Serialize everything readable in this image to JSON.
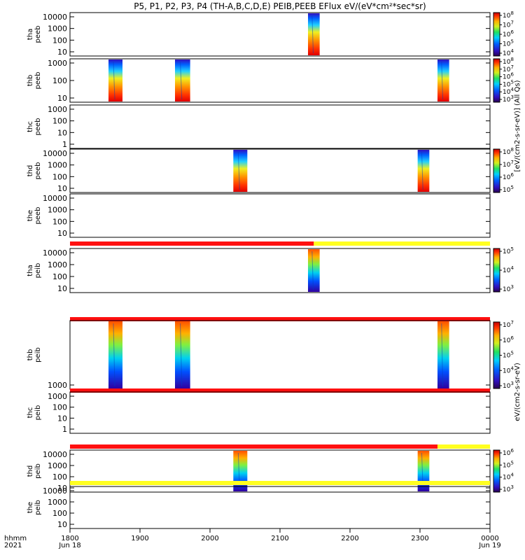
{
  "title": "P5, P1, P2, P3, P4 (TH-A,B,C,D,E) PEIB,PEEB EFlux eV/(eV*cm²*sec*sr)",
  "footer": {
    "row1_label": "hhmm",
    "row2_label": "2021",
    "x_ticks": [
      "1800",
      "1900",
      "2000",
      "2100",
      "2200",
      "2300",
      "0000"
    ],
    "x_dates": [
      "Jun 18",
      "Jun 19"
    ]
  },
  "colors": {
    "mode_red": "#ff1010",
    "mode_yellow": "#ffff20",
    "frame": "#000000"
  },
  "colorbar_label_esa": "[eV/(cm2-s-sr-eV)] (All Qs)",
  "colorbar_label_esa_flux": "eV/(cm2-s-sr-eV)",
  "chart_data": [
    {
      "type": "heatmap",
      "probe": "tha",
      "instrument": "peeb",
      "ylabel": "tha\npeeb",
      "y_scale": "log",
      "y_ticks": [
        "10",
        "100",
        "1000",
        "10000"
      ],
      "colorbar_ticks": [
        "10^4",
        "10^5",
        "10^6",
        "10^7",
        "10^8"
      ],
      "bursts_hhmm": [
        [
          "2124",
          "2134"
        ]
      ]
    },
    {
      "type": "heatmap",
      "probe": "thb",
      "instrument": "peeb",
      "ylabel": "thb\npeeb",
      "y_scale": "log",
      "y_ticks": [
        "10",
        "100",
        "1000"
      ],
      "colorbar_ticks": [
        "10^3",
        "10^4",
        "10^5",
        "10^6",
        "10^7",
        "10^8"
      ],
      "bursts_hhmm": [
        [
          "1833",
          "1845"
        ],
        [
          "1930",
          "1943"
        ],
        [
          "2315",
          "2325"
        ]
      ]
    },
    {
      "type": "heatmap",
      "probe": "thc",
      "instrument": "peeb",
      "ylabel": "thc\npeeb",
      "y_scale": "log",
      "y_ticks": [
        "1",
        "10",
        "100",
        "1000"
      ],
      "bursts_hhmm": []
    },
    {
      "type": "heatmap",
      "probe": "thd",
      "instrument": "peeb",
      "ylabel": "thd\npeeb",
      "y_scale": "log",
      "y_ticks": [
        "10",
        "100",
        "1000",
        "10000"
      ],
      "colorbar_ticks": [
        "10^5",
        "10^6",
        "10^7",
        "10^8"
      ],
      "bursts_hhmm": [
        [
          "2020",
          "2032"
        ],
        [
          "2258",
          "2308"
        ]
      ]
    },
    {
      "type": "heatmap",
      "probe": "the",
      "instrument": "peeb",
      "ylabel": "the\npeeb",
      "y_scale": "log",
      "y_ticks": [
        "10",
        "100",
        "1000",
        "10000"
      ],
      "bursts_hhmm": []
    },
    {
      "type": "heatmap",
      "probe": "tha",
      "instrument": "peib",
      "ylabel": "tha\npeib",
      "y_scale": "log",
      "y_ticks": [
        "10",
        "100",
        "1000",
        "10000"
      ],
      "colorbar_ticks": [
        "10^3",
        "10^4",
        "10^5"
      ],
      "bursts_hhmm": [
        [
          "2124",
          "2134"
        ]
      ],
      "mode_bar": [
        {
          "color": "red",
          "from": "1800",
          "to": "2129"
        },
        {
          "color": "yellow",
          "from": "2129",
          "to": "0000"
        }
      ]
    },
    {
      "type": "heatmap",
      "probe": "thb",
      "instrument": "peib",
      "ylabel": "thb\npeib",
      "y_scale": "log",
      "y_ticks": [
        "1000"
      ],
      "colorbar_ticks": [
        "10^3",
        "10^4",
        "10^5",
        "10^6",
        "10^7"
      ],
      "bursts_hhmm": [
        [
          "1833",
          "1845"
        ],
        [
          "1930",
          "1943"
        ],
        [
          "2315",
          "2325"
        ]
      ],
      "mode_bar": [
        {
          "color": "red",
          "from": "1800",
          "to": "0000"
        }
      ]
    },
    {
      "type": "heatmap",
      "probe": "thc",
      "instrument": "peib",
      "ylabel": "thc\npeib",
      "y_scale": "log",
      "y_ticks": [
        "1",
        "10",
        "100",
        "1000"
      ],
      "bursts_hhmm": [],
      "mode_bar": [
        {
          "color": "red",
          "from": "1800",
          "to": "0000"
        }
      ]
    },
    {
      "type": "heatmap",
      "probe": "thd",
      "instrument": "peib",
      "ylabel": "thd\npeib",
      "y_scale": "log",
      "y_ticks": [
        "10",
        "100",
        "1000",
        "10000"
      ],
      "colorbar_ticks": [
        "10^3",
        "10^4",
        "10^5",
        "10^6"
      ],
      "bursts_hhmm": [
        [
          "2020",
          "2032"
        ],
        [
          "2258",
          "2308"
        ]
      ],
      "mode_bar": [
        {
          "color": "red",
          "from": "1800",
          "to": "2315"
        },
        {
          "color": "yellow",
          "from": "2315",
          "to": "0000"
        }
      ]
    },
    {
      "type": "heatmap",
      "probe": "the",
      "instrument": "peib",
      "ylabel": "the\npeib",
      "y_scale": "log",
      "y_ticks": [
        "10",
        "100",
        "1000",
        "10000"
      ],
      "bursts_hhmm": [],
      "mode_bar": [
        {
          "color": "yellow",
          "from": "1800",
          "to": "0000"
        }
      ]
    }
  ]
}
